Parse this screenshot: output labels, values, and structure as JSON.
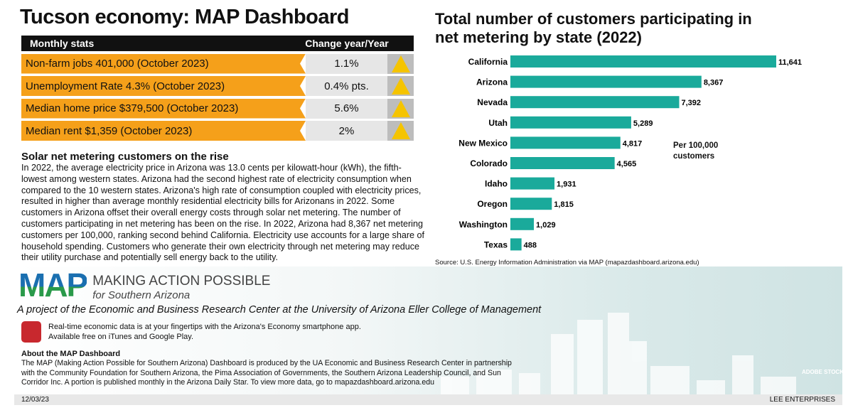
{
  "title": "Tucson economy: MAP Dashboard",
  "stats": {
    "header_label": "Monthly stats",
    "header_change": "Change year/Year",
    "rows": [
      {
        "label": "Non-farm jobs 401,000 (October 2023)",
        "change": "1.1%",
        "trend": "up"
      },
      {
        "label": "Unemployment Rate 4.3% (October 2023)",
        "change": "0.4% pts.",
        "trend": "up"
      },
      {
        "label": "Median home price $379,500 (October 2023)",
        "change": "5.6%",
        "trend": "up"
      },
      {
        "label": "Median rent $1,359 (October 2023)",
        "change": "2%",
        "trend": "up"
      }
    ]
  },
  "article": {
    "heading": "Solar net metering customers on the rise",
    "body": "In 2022, the average electricity price in Arizona was 13.0 cents per kilowatt-hour (kWh), the fifth-lowest among western states. Arizona had the second highest rate of electricity consumption when compared to the 10 western states. Arizona's high rate of consumption coupled with electricity prices, resulted in higher than average monthly residential electricity bills for Arizonans in 2022. Some customers in Arizona offset their overall energy costs through solar net metering. The number of customers participating in net metering has been on the rise. In 2022, Arizona had 8,367 net metering customers per 100,000, ranking second behind California. Electricity use accounts for a large share of household spending. Customers who generate their own electricity through net metering may reduce their utility purchase and potentially sell energy back to the utility."
  },
  "logo": {
    "mark": "MAP",
    "line1": "MAKING ACTION POSSIBLE",
    "line2": "for Southern Arizona"
  },
  "project": "A project of the Economic and Business Research Center at the University of Arizona Eller College of Management",
  "app": {
    "line1": "Real-time economic data is at your fingertips with the Arizona's Economy smartphone app.",
    "line2": "Available free on iTunes and Google Play."
  },
  "about": {
    "heading": "About the MAP Dashboard",
    "body": "The MAP (Making Action Possible for Southern Arizona) Dashboard is produced by the UA Economic and Business Research Center in partnership with the Community Foundation for Southern Arizona, the Pima Association of Governments, the Southern Arizona Leadership Council, and Sun Corridor Inc. A portion is published monthly in the Arizona Daily Star. To view more data, go to mapazdashboard.arizona.edu"
  },
  "footer": {
    "date": "12/03/23",
    "credit": "LEE ENTERPRISES",
    "photo_credit": "ADOBE STOCK"
  },
  "colors": {
    "bar": "#1aaa9b",
    "orange": "#f5a01a",
    "arrow": "#f5c400"
  },
  "chart_data": {
    "type": "bar",
    "orientation": "horizontal",
    "title": "Total number of customers participating in net metering by state (2022)",
    "annotation": "Per 100,000 customers",
    "source": "Source: U.S. Energy Information Administration  via MAP (mapazdashboard.arizona.edu)",
    "categories": [
      "California",
      "Arizona",
      "Nevada",
      "Utah",
      "New Mexico",
      "Colorado",
      "Idaho",
      "Oregon",
      "Washington",
      "Texas"
    ],
    "values": [
      11641,
      8367,
      7392,
      5289,
      4817,
      4565,
      1931,
      1815,
      1029,
      488
    ],
    "labels": [
      "11,641",
      "8,367",
      "7,392",
      "5,289",
      "4,817",
      "4,565",
      "1,931",
      "1,815",
      "1,029",
      "488"
    ],
    "xlim": [
      0,
      11641
    ],
    "grid": false,
    "legend": "none"
  }
}
